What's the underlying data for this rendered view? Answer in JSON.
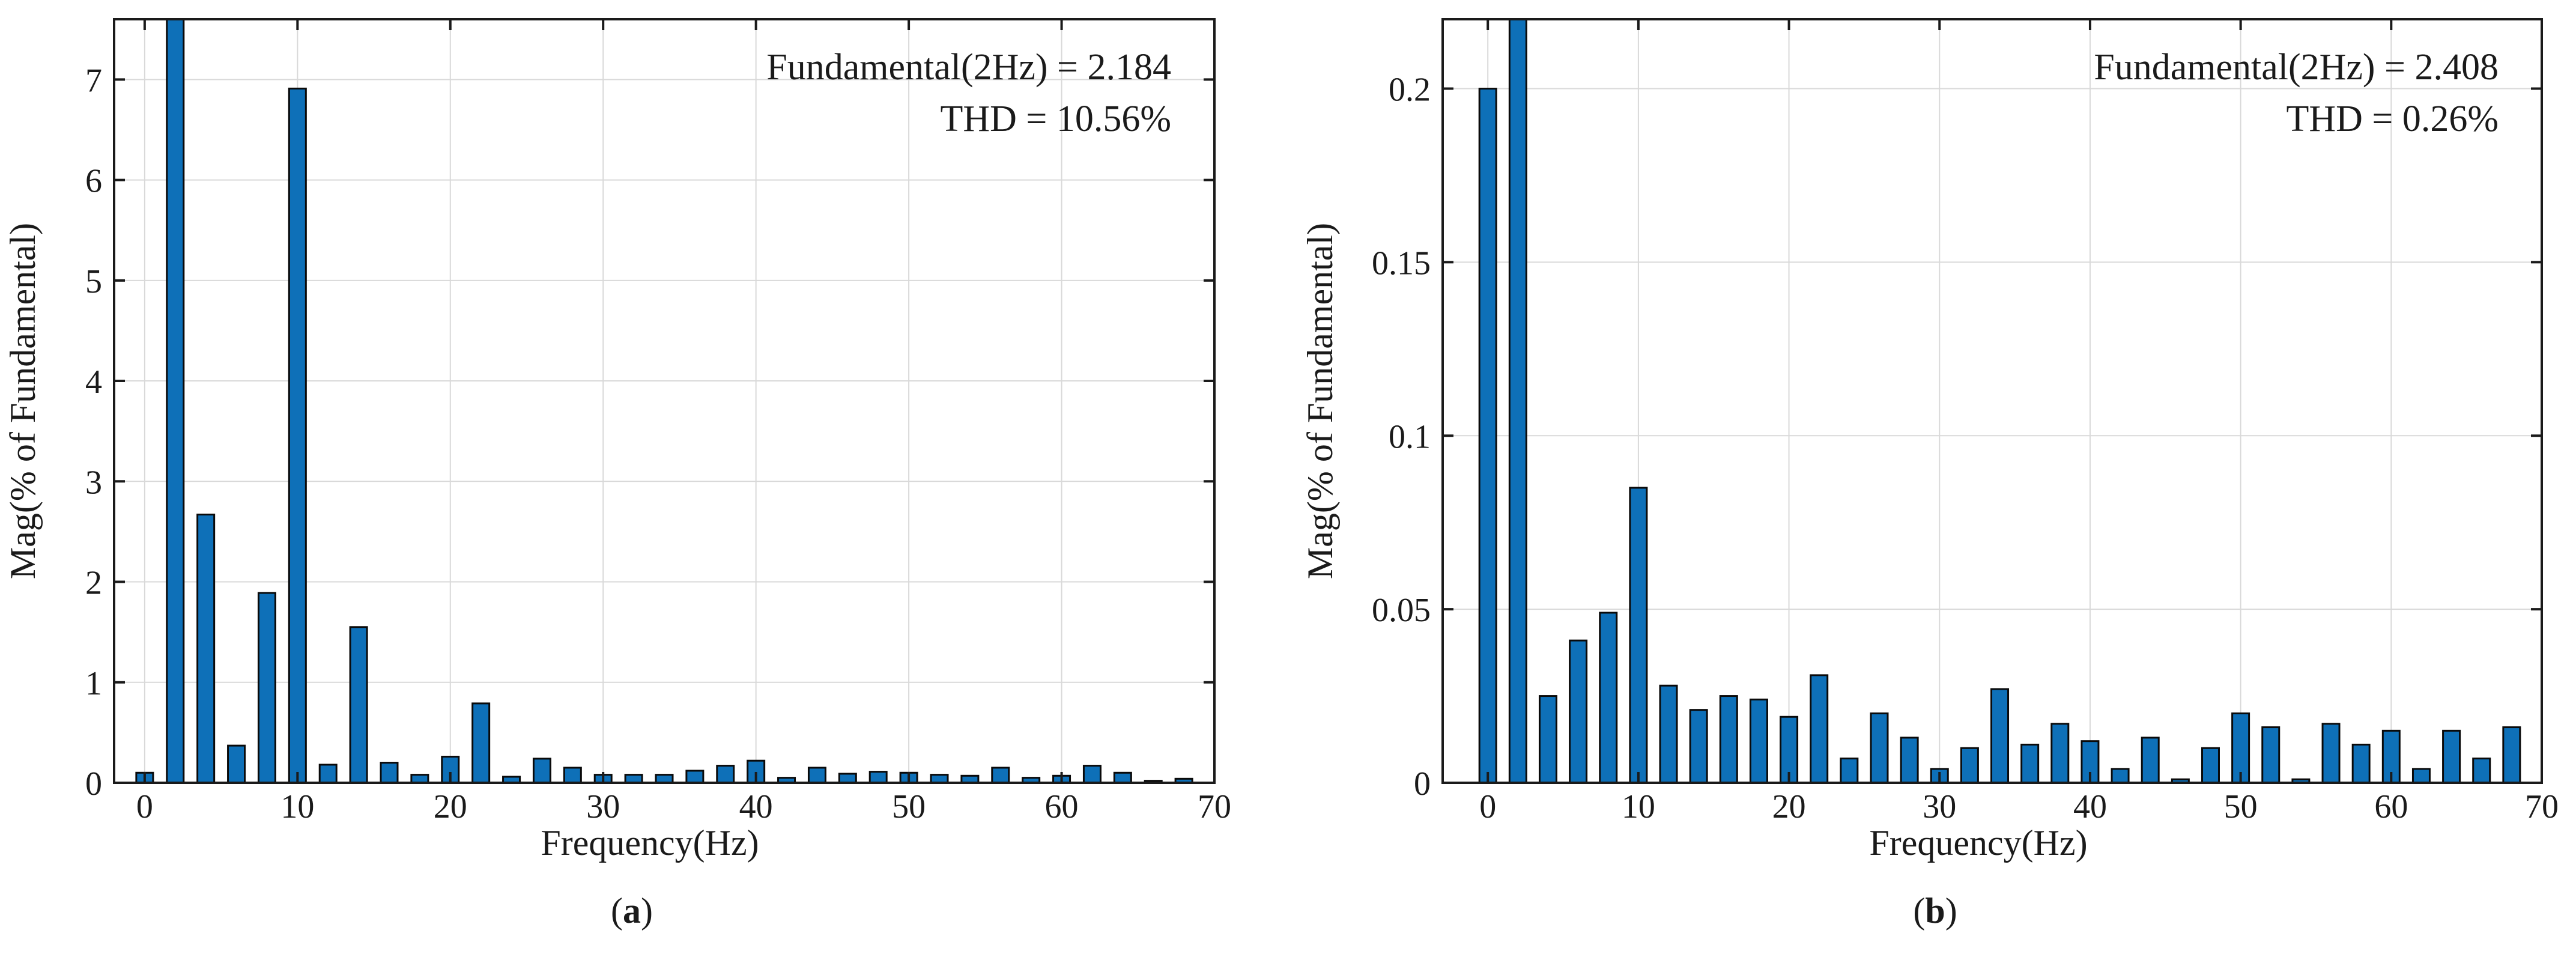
{
  "figure": {
    "panel_label_a": "a",
    "panel_label_b": "b"
  },
  "chart_data": [
    {
      "type": "bar",
      "panel": "a",
      "xlabel": "Frequency(Hz)",
      "ylabel": "Mag(% of Fundamental)",
      "xlim": [
        -2,
        70
      ],
      "ylim": [
        0,
        7.6
      ],
      "xticks": [
        0,
        10,
        20,
        30,
        40,
        50,
        60,
        70
      ],
      "yticks": [
        0,
        1,
        2,
        3,
        4,
        5,
        6,
        7
      ],
      "grid": true,
      "bar_color": "#0e70b8",
      "annotations": [
        "Fundamental(2Hz) = 2.184",
        "THD = 10.56%"
      ],
      "x": [
        0,
        2,
        4,
        6,
        8,
        10,
        12,
        14,
        16,
        18,
        20,
        22,
        24,
        26,
        28,
        30,
        32,
        34,
        36,
        38,
        40,
        42,
        44,
        46,
        48,
        50,
        52,
        54,
        56,
        58,
        60,
        62,
        64,
        66,
        68
      ],
      "values": [
        0.1,
        7.6,
        2.67,
        0.37,
        1.89,
        6.91,
        0.18,
        1.55,
        0.2,
        0.08,
        0.26,
        0.79,
        0.06,
        0.24,
        0.15,
        0.08,
        0.08,
        0.08,
        0.12,
        0.17,
        0.22,
        0.05,
        0.15,
        0.09,
        0.11,
        0.1,
        0.08,
        0.07,
        0.15,
        0.05,
        0.07,
        0.17,
        0.1,
        0.02,
        0.04
      ]
    },
    {
      "type": "bar",
      "panel": "b",
      "xlabel": "Frequency(Hz)",
      "ylabel": "Mag(% of Fundamental)",
      "xlim": [
        -3,
        70
      ],
      "ylim": [
        0,
        0.22
      ],
      "xticks": [
        0,
        10,
        20,
        30,
        40,
        50,
        60,
        70
      ],
      "yticks": [
        0,
        0.05,
        0.1,
        0.15,
        0.2
      ],
      "ytick_labels": [
        "0",
        "0.05",
        "0.1",
        "0.15",
        "0.2"
      ],
      "grid": true,
      "bar_color": "#0e70b8",
      "annotations": [
        "Fundamental(2Hz) = 2.408",
        "THD = 0.26%"
      ],
      "x": [
        0,
        2,
        4,
        6,
        8,
        10,
        12,
        14,
        16,
        18,
        20,
        22,
        24,
        26,
        28,
        30,
        32,
        34,
        36,
        38,
        40,
        42,
        44,
        46,
        48,
        50,
        52,
        54,
        56,
        58,
        60,
        62,
        64,
        66,
        68
      ],
      "values": [
        0.2,
        0.22,
        0.025,
        0.041,
        0.049,
        0.085,
        0.028,
        0.021,
        0.025,
        0.024,
        0.019,
        0.031,
        0.007,
        0.02,
        0.013,
        0.004,
        0.01,
        0.027,
        0.011,
        0.017,
        0.012,
        0.004,
        0.013,
        0.001,
        0.01,
        0.02,
        0.016,
        0.001,
        0.017,
        0.011,
        0.015,
        0.004,
        0.015,
        0.007,
        0.016
      ]
    }
  ]
}
